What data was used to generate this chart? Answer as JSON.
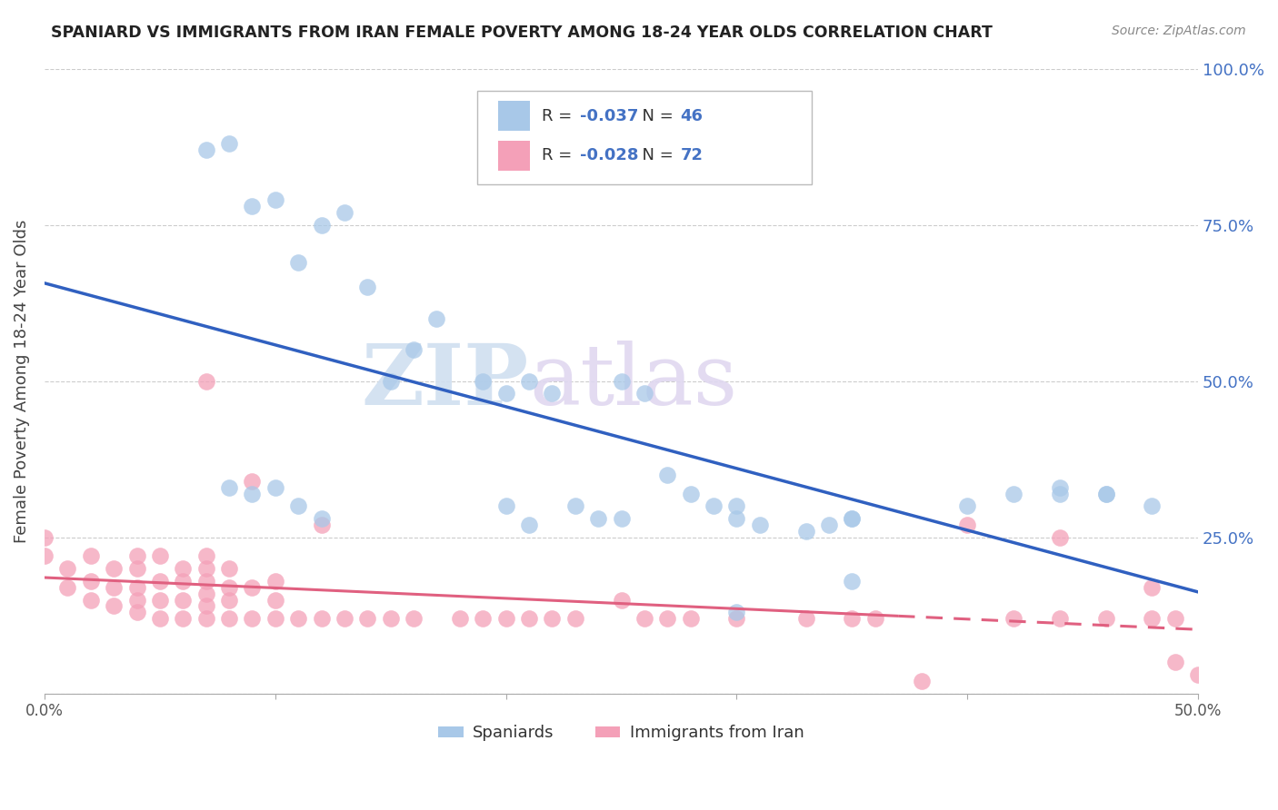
{
  "title": "SPANIARD VS IMMIGRANTS FROM IRAN FEMALE POVERTY AMONG 18-24 YEAR OLDS CORRELATION CHART",
  "source": "Source: ZipAtlas.com",
  "ylabel": "Female Poverty Among 18-24 Year Olds",
  "xlim": [
    0.0,
    0.5
  ],
  "ylim": [
    0.0,
    1.0
  ],
  "xticks": [
    0.0,
    0.1,
    0.2,
    0.3,
    0.4,
    0.5
  ],
  "xtick_labels": [
    "0.0%",
    "",
    "",
    "",
    "",
    "50.0%"
  ],
  "yticks": [
    0.0,
    0.25,
    0.5,
    0.75,
    1.0
  ],
  "ytick_labels_right": [
    "",
    "25.0%",
    "50.0%",
    "75.0%",
    "100.0%"
  ],
  "spaniard_R": "-0.037",
  "spaniard_N": "46",
  "iran_R": "-0.028",
  "iran_N": "72",
  "spaniard_color": "#a8c8e8",
  "iran_color": "#f4a0b8",
  "spaniard_line_color": "#3060c0",
  "iran_line_color": "#e06080",
  "legend_label_spaniard": "Spaniards",
  "legend_label_iran": "Immigrants from Iran",
  "watermark_zip": "ZIP",
  "watermark_atlas": "atlas",
  "background_color": "#ffffff",
  "spaniard_scatter_x": [
    0.07,
    0.08,
    0.09,
    0.1,
    0.11,
    0.12,
    0.13,
    0.14,
    0.15,
    0.16,
    0.17,
    0.19,
    0.2,
    0.21,
    0.22,
    0.25,
    0.26,
    0.27,
    0.28,
    0.29,
    0.3,
    0.31,
    0.33,
    0.34,
    0.35,
    0.44,
    0.46,
    0.08,
    0.09,
    0.1,
    0.11,
    0.12,
    0.2,
    0.21,
    0.23,
    0.24,
    0.25,
    0.3,
    0.35,
    0.4,
    0.42,
    0.44,
    0.46,
    0.48,
    0.3,
    0.35
  ],
  "spaniard_scatter_y": [
    0.87,
    0.88,
    0.78,
    0.79,
    0.69,
    0.75,
    0.77,
    0.65,
    0.5,
    0.55,
    0.6,
    0.5,
    0.48,
    0.5,
    0.48,
    0.5,
    0.48,
    0.35,
    0.32,
    0.3,
    0.28,
    0.27,
    0.26,
    0.27,
    0.28,
    0.33,
    0.32,
    0.33,
    0.32,
    0.33,
    0.3,
    0.28,
    0.3,
    0.27,
    0.3,
    0.28,
    0.28,
    0.3,
    0.28,
    0.3,
    0.32,
    0.32,
    0.32,
    0.3,
    0.13,
    0.18
  ],
  "iran_scatter_x": [
    0.0,
    0.0,
    0.01,
    0.01,
    0.02,
    0.02,
    0.02,
    0.03,
    0.03,
    0.03,
    0.04,
    0.04,
    0.04,
    0.04,
    0.04,
    0.05,
    0.05,
    0.05,
    0.05,
    0.06,
    0.06,
    0.06,
    0.06,
    0.07,
    0.07,
    0.07,
    0.07,
    0.07,
    0.07,
    0.07,
    0.08,
    0.08,
    0.08,
    0.08,
    0.09,
    0.09,
    0.09,
    0.1,
    0.1,
    0.1,
    0.11,
    0.12,
    0.12,
    0.13,
    0.14,
    0.15,
    0.16,
    0.18,
    0.19,
    0.2,
    0.21,
    0.22,
    0.23,
    0.25,
    0.26,
    0.27,
    0.28,
    0.3,
    0.33,
    0.35,
    0.36,
    0.38,
    0.4,
    0.42,
    0.44,
    0.44,
    0.46,
    0.48,
    0.48,
    0.49,
    0.49,
    0.5
  ],
  "iran_scatter_y": [
    0.22,
    0.25,
    0.17,
    0.2,
    0.15,
    0.18,
    0.22,
    0.14,
    0.17,
    0.2,
    0.13,
    0.15,
    0.17,
    0.2,
    0.22,
    0.12,
    0.15,
    0.18,
    0.22,
    0.12,
    0.15,
    0.18,
    0.2,
    0.12,
    0.14,
    0.16,
    0.18,
    0.2,
    0.22,
    0.5,
    0.12,
    0.15,
    0.17,
    0.2,
    0.12,
    0.17,
    0.34,
    0.12,
    0.15,
    0.18,
    0.12,
    0.12,
    0.27,
    0.12,
    0.12,
    0.12,
    0.12,
    0.12,
    0.12,
    0.12,
    0.12,
    0.12,
    0.12,
    0.15,
    0.12,
    0.12,
    0.12,
    0.12,
    0.12,
    0.12,
    0.12,
    0.02,
    0.27,
    0.12,
    0.12,
    0.25,
    0.12,
    0.12,
    0.17,
    0.05,
    0.12,
    0.03
  ]
}
